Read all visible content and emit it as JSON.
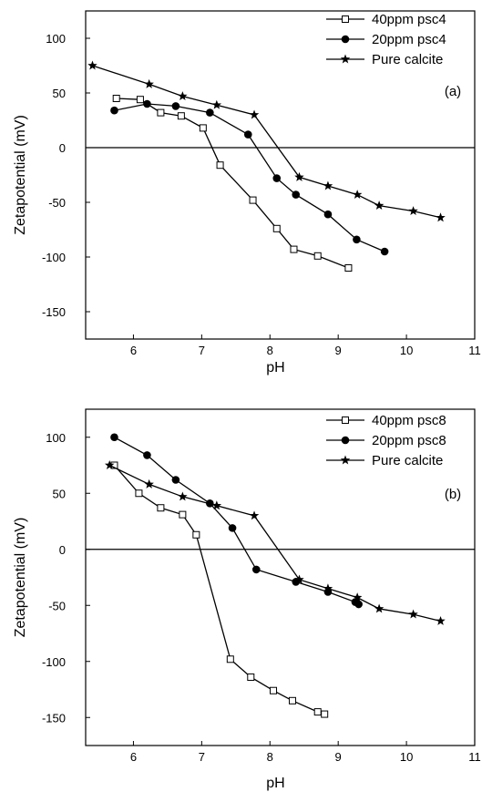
{
  "chart_data": [
    {
      "type": "line",
      "panel_label": "(a)",
      "xlabel": "pH",
      "ylabel": "Zetapotential (mV)",
      "xlim": [
        5.3,
        11
      ],
      "ylim": [
        -175,
        125
      ],
      "xticks": [
        6,
        7,
        8,
        9,
        10,
        11
      ],
      "yticks": [
        100,
        50,
        0,
        -50,
        -100,
        -150
      ],
      "zero_line": true,
      "legend_position": "top-right",
      "series": [
        {
          "name": "40ppm psc4",
          "marker": "open-square",
          "x": [
            5.75,
            6.1,
            6.4,
            6.7,
            7.02,
            7.27,
            7.75,
            8.1,
            8.35,
            8.7,
            9.15
          ],
          "y": [
            45,
            44,
            32,
            29,
            18,
            -16,
            -48,
            -74,
            -93,
            -99,
            -110
          ]
        },
        {
          "name": "20ppm psc4",
          "marker": "filled-circle",
          "x": [
            5.72,
            6.2,
            6.62,
            7.12,
            7.68,
            8.1,
            8.38,
            8.85,
            9.27,
            9.68
          ],
          "y": [
            34,
            40,
            38,
            32,
            12,
            -28,
            -43,
            -61,
            -84,
            -95
          ]
        },
        {
          "name": "Pure calcite",
          "marker": "filled-star",
          "x": [
            5.4,
            6.23,
            6.72,
            7.22,
            7.77,
            8.43,
            8.85,
            9.28,
            9.6,
            10.1,
            10.5
          ],
          "y": [
            75,
            58,
            47,
            39,
            30,
            -27,
            -35,
            -43,
            -53,
            -58,
            -64
          ]
        }
      ]
    },
    {
      "type": "line",
      "panel_label": "(b)",
      "xlabel": "pH",
      "ylabel": "Zetapotential (mV)",
      "xlim": [
        5.3,
        11
      ],
      "ylim": [
        -175,
        125
      ],
      "xticks": [
        6,
        7,
        8,
        9,
        10,
        11
      ],
      "yticks": [
        100,
        50,
        0,
        -50,
        -100,
        -150
      ],
      "zero_line": true,
      "legend_position": "top-right",
      "series": [
        {
          "name": "40ppm psc8",
          "marker": "open-square",
          "x": [
            5.72,
            6.08,
            6.4,
            6.72,
            6.92,
            7.42,
            7.72,
            8.05,
            8.33,
            8.7,
            8.8
          ],
          "y": [
            75,
            50,
            37,
            31,
            13,
            -98,
            -114,
            -126,
            -135,
            -145,
            -147
          ]
        },
        {
          "name": "20ppm psc8",
          "marker": "filled-circle",
          "x": [
            5.72,
            6.2,
            6.62,
            7.12,
            7.45,
            7.8,
            8.38,
            8.85,
            9.25,
            9.3
          ],
          "y": [
            100,
            84,
            62,
            41,
            19,
            -18,
            -29,
            -38,
            -47,
            -49
          ]
        },
        {
          "name": "Pure calcite",
          "marker": "filled-star",
          "x": [
            5.65,
            6.23,
            6.72,
            7.22,
            7.77,
            8.43,
            8.85,
            9.28,
            9.6,
            10.1,
            10.5
          ],
          "y": [
            75,
            58,
            47,
            39,
            30,
            -27,
            -35,
            -43,
            -53,
            -58,
            -64
          ]
        }
      ]
    }
  ]
}
